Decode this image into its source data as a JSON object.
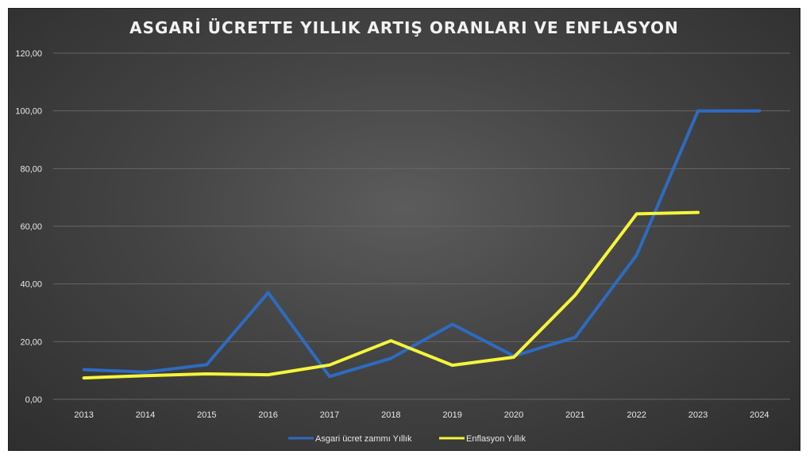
{
  "chart_data": {
    "type": "line",
    "title": "ASGARİ ÜCRETTE YILLIK ARTIŞ ORANLARI VE ENFLASYON",
    "xlabel": "",
    "ylabel": "",
    "ylim": [
      0,
      120
    ],
    "yticks": [
      "0,00",
      "20,00",
      "40,00",
      "60,00",
      "80,00",
      "100,00",
      "120,00"
    ],
    "grid": true,
    "legend_position": "bottom",
    "categories": [
      "2013",
      "2014",
      "2015",
      "2016",
      "2017",
      "2018",
      "2019",
      "2020",
      "2021",
      "2022",
      "2023",
      "2024"
    ],
    "series": [
      {
        "name": "Asgari ücret zammı Yıllık",
        "color": "#2e6bc0",
        "values": [
          10.3,
          9.4,
          12.0,
          37.0,
          7.9,
          14.2,
          26.0,
          15.0,
          21.5,
          50.0,
          100.0,
          100.0
        ]
      },
      {
        "name": "Enflasyon Yıllık",
        "color": "#f5f53b",
        "values": [
          7.4,
          8.2,
          8.8,
          8.5,
          11.9,
          20.3,
          11.8,
          14.6,
          36.1,
          64.3,
          64.8,
          null
        ]
      }
    ]
  }
}
